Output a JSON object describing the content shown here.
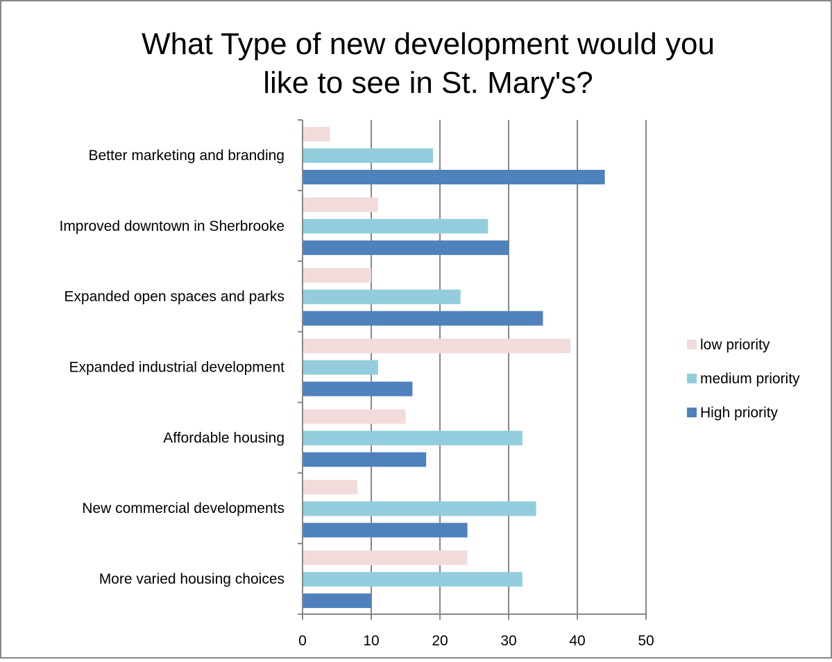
{
  "chart_data": {
    "type": "bar",
    "orientation": "horizontal",
    "title": "What Type of new development would you like to see in St. Mary's?",
    "title_lines": [
      "What Type of new development would you",
      "like to see in St. Mary's?"
    ],
    "xlabel": "",
    "ylabel": "",
    "xlim": [
      0,
      50
    ],
    "x_ticks": [
      "0",
      "10",
      "20",
      "30",
      "40",
      "50"
    ],
    "grid": "vertical",
    "legend_position": "right",
    "categories": [
      "Better marketing and branding",
      "Improved downtown in Sherbrooke",
      "Expanded open spaces and parks",
      "Expanded industrial development",
      "Affordable housing",
      "New commercial developments",
      "More varied housing choices"
    ],
    "series": [
      {
        "name": "low priority",
        "color": "#f2dcdb",
        "values": [
          4,
          11,
          10,
          39,
          15,
          8,
          24
        ]
      },
      {
        "name": "medium priority",
        "color": "#93cddd",
        "values": [
          19,
          27,
          23,
          11,
          32,
          34,
          32
        ]
      },
      {
        "name": "High priority",
        "color": "#4f81bd",
        "values": [
          44,
          30,
          35,
          16,
          18,
          24,
          10
        ]
      }
    ]
  }
}
